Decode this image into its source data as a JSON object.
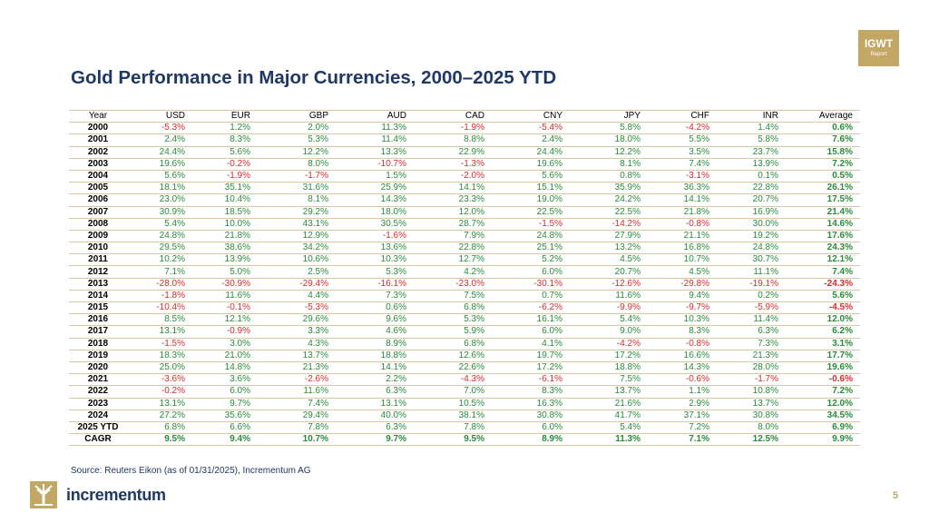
{
  "badge": {
    "line1": "IGWT",
    "line2": "Report"
  },
  "title": "Gold Performance in Major Currencies, 2000–2025 YTD",
  "table": {
    "headers": [
      "Year",
      "USD",
      "EUR",
      "GBP",
      "AUD",
      "CAD",
      "CNY",
      "JPY",
      "CHF",
      "INR",
      "Average"
    ],
    "rows": [
      [
        "2000",
        "-5.3%",
        "1.2%",
        "2.0%",
        "11.3%",
        "-1.9%",
        "-5.4%",
        "5.8%",
        "-4.2%",
        "1.4%",
        "0.6%"
      ],
      [
        "2001",
        "2.4%",
        "8.3%",
        "5.3%",
        "11.4%",
        "8.8%",
        "2.4%",
        "18.0%",
        "5.5%",
        "5.8%",
        "7.6%"
      ],
      [
        "2002",
        "24.4%",
        "5.6%",
        "12.2%",
        "13.3%",
        "22.9%",
        "24.4%",
        "12.2%",
        "3.5%",
        "23.7%",
        "15.8%"
      ],
      [
        "2003",
        "19.6%",
        "-0.2%",
        "8.0%",
        "-10.7%",
        "-1.3%",
        "19.6%",
        "8.1%",
        "7.4%",
        "13.9%",
        "7.2%"
      ],
      [
        "2004",
        "5.6%",
        "-1.9%",
        "-1.7%",
        "1.5%",
        "-2.0%",
        "5.6%",
        "0.8%",
        "-3.1%",
        "0.1%",
        "0.5%"
      ],
      [
        "2005",
        "18.1%",
        "35.1%",
        "31.6%",
        "25.9%",
        "14.1%",
        "15.1%",
        "35.9%",
        "36.3%",
        "22.8%",
        "26.1%"
      ],
      [
        "2006",
        "23.0%",
        "10.4%",
        "8.1%",
        "14.3%",
        "23.3%",
        "19.0%",
        "24.2%",
        "14.1%",
        "20.7%",
        "17.5%"
      ],
      [
        "2007",
        "30.9%",
        "18.5%",
        "29.2%",
        "18.0%",
        "12.0%",
        "22.5%",
        "22.5%",
        "21.8%",
        "16.9%",
        "21.4%"
      ],
      [
        "2008",
        "5.4%",
        "10.0%",
        "43.1%",
        "30.5%",
        "28.7%",
        "-1.5%",
        "-14.2%",
        "-0.8%",
        "30.0%",
        "14.6%"
      ],
      [
        "2009",
        "24.8%",
        "21.8%",
        "12.9%",
        "-1.6%",
        "7.9%",
        "24.8%",
        "27.9%",
        "21.1%",
        "19.2%",
        "17.6%"
      ],
      [
        "2010",
        "29.5%",
        "38.6%",
        "34.2%",
        "13.6%",
        "22.8%",
        "25.1%",
        "13.2%",
        "16.8%",
        "24.8%",
        "24.3%"
      ],
      [
        "2011",
        "10.2%",
        "13.9%",
        "10.6%",
        "10.3%",
        "12.7%",
        "5.2%",
        "4.5%",
        "10.7%",
        "30.7%",
        "12.1%"
      ],
      [
        "2012",
        "7.1%",
        "5.0%",
        "2.5%",
        "5.3%",
        "4.2%",
        "6.0%",
        "20.7%",
        "4.5%",
        "11.1%",
        "7.4%"
      ],
      [
        "2013",
        "-28.0%",
        "-30.9%",
        "-29.4%",
        "-16.1%",
        "-23.0%",
        "-30.1%",
        "-12.6%",
        "-29.8%",
        "-19.1%",
        "-24.3%"
      ],
      [
        "2014",
        "-1.8%",
        "11.6%",
        "4.4%",
        "7.3%",
        "7.5%",
        "0.7%",
        "11.6%",
        "9.4%",
        "0.2%",
        "5.6%"
      ],
      [
        "2015",
        "-10.4%",
        "-0.1%",
        "-5.3%",
        "0.6%",
        "6.8%",
        "-6.2%",
        "-9.9%",
        "-9.7%",
        "-5.9%",
        "-4.5%"
      ],
      [
        "2016",
        "8.5%",
        "12.1%",
        "29.6%",
        "9.6%",
        "5.3%",
        "16.1%",
        "5.4%",
        "10.3%",
        "11.4%",
        "12.0%"
      ],
      [
        "2017",
        "13.1%",
        "-0.9%",
        "3.3%",
        "4.6%",
        "5.9%",
        "6.0%",
        "9.0%",
        "8.3%",
        "6.3%",
        "6.2%"
      ],
      [
        "2018",
        "-1.5%",
        "3.0%",
        "4.3%",
        "8.9%",
        "6.8%",
        "4.1%",
        "-4.2%",
        "-0.8%",
        "7.3%",
        "3.1%"
      ],
      [
        "2019",
        "18.3%",
        "21.0%",
        "13.7%",
        "18.8%",
        "12.6%",
        "19.7%",
        "17.2%",
        "16.6%",
        "21.3%",
        "17.7%"
      ],
      [
        "2020",
        "25.0%",
        "14.8%",
        "21.3%",
        "14.1%",
        "22.6%",
        "17.2%",
        "18.8%",
        "14.3%",
        "28.0%",
        "19.6%"
      ],
      [
        "2021",
        "-3.6%",
        "3.6%",
        "-2.6%",
        "2.2%",
        "-4.3%",
        "-6.1%",
        "7.5%",
        "-0.6%",
        "-1.7%",
        "-0.6%"
      ],
      [
        "2022",
        "-0.2%",
        "6.0%",
        "11.6%",
        "6.3%",
        "7.0%",
        "8.3%",
        "13.7%",
        "1.1%",
        "10.8%",
        "7.2%"
      ],
      [
        "2023",
        "13.1%",
        "9.7%",
        "7.4%",
        "13.1%",
        "10.5%",
        "16.3%",
        "21.6%",
        "2.9%",
        "13.7%",
        "12.0%"
      ],
      [
        "2024",
        "27.2%",
        "35.6%",
        "29.4%",
        "40.0%",
        "38.1%",
        "30.8%",
        "41.7%",
        "37.1%",
        "30.8%",
        "34.5%"
      ],
      [
        "2025 YTD",
        "6.8%",
        "6.6%",
        "7.8%",
        "6.3%",
        "7.8%",
        "6.0%",
        "5.4%",
        "7.2%",
        "8.0%",
        "6.9%"
      ]
    ],
    "cagr": [
      "CAGR",
      "9.5%",
      "9.4%",
      "10.7%",
      "9.7%",
      "9.5%",
      "8.9%",
      "11.3%",
      "7.1%",
      "12.5%",
      "9.9%"
    ]
  },
  "source": "Source: Reuters Eikon (as of 01/31/2025), Incrementum AG",
  "brand": "incrementum",
  "page_number": "5",
  "colors": {
    "accent_gold": "#c2a765",
    "title_navy": "#1f3864",
    "positive": "#2a8a3a",
    "negative": "#d62c2c"
  }
}
